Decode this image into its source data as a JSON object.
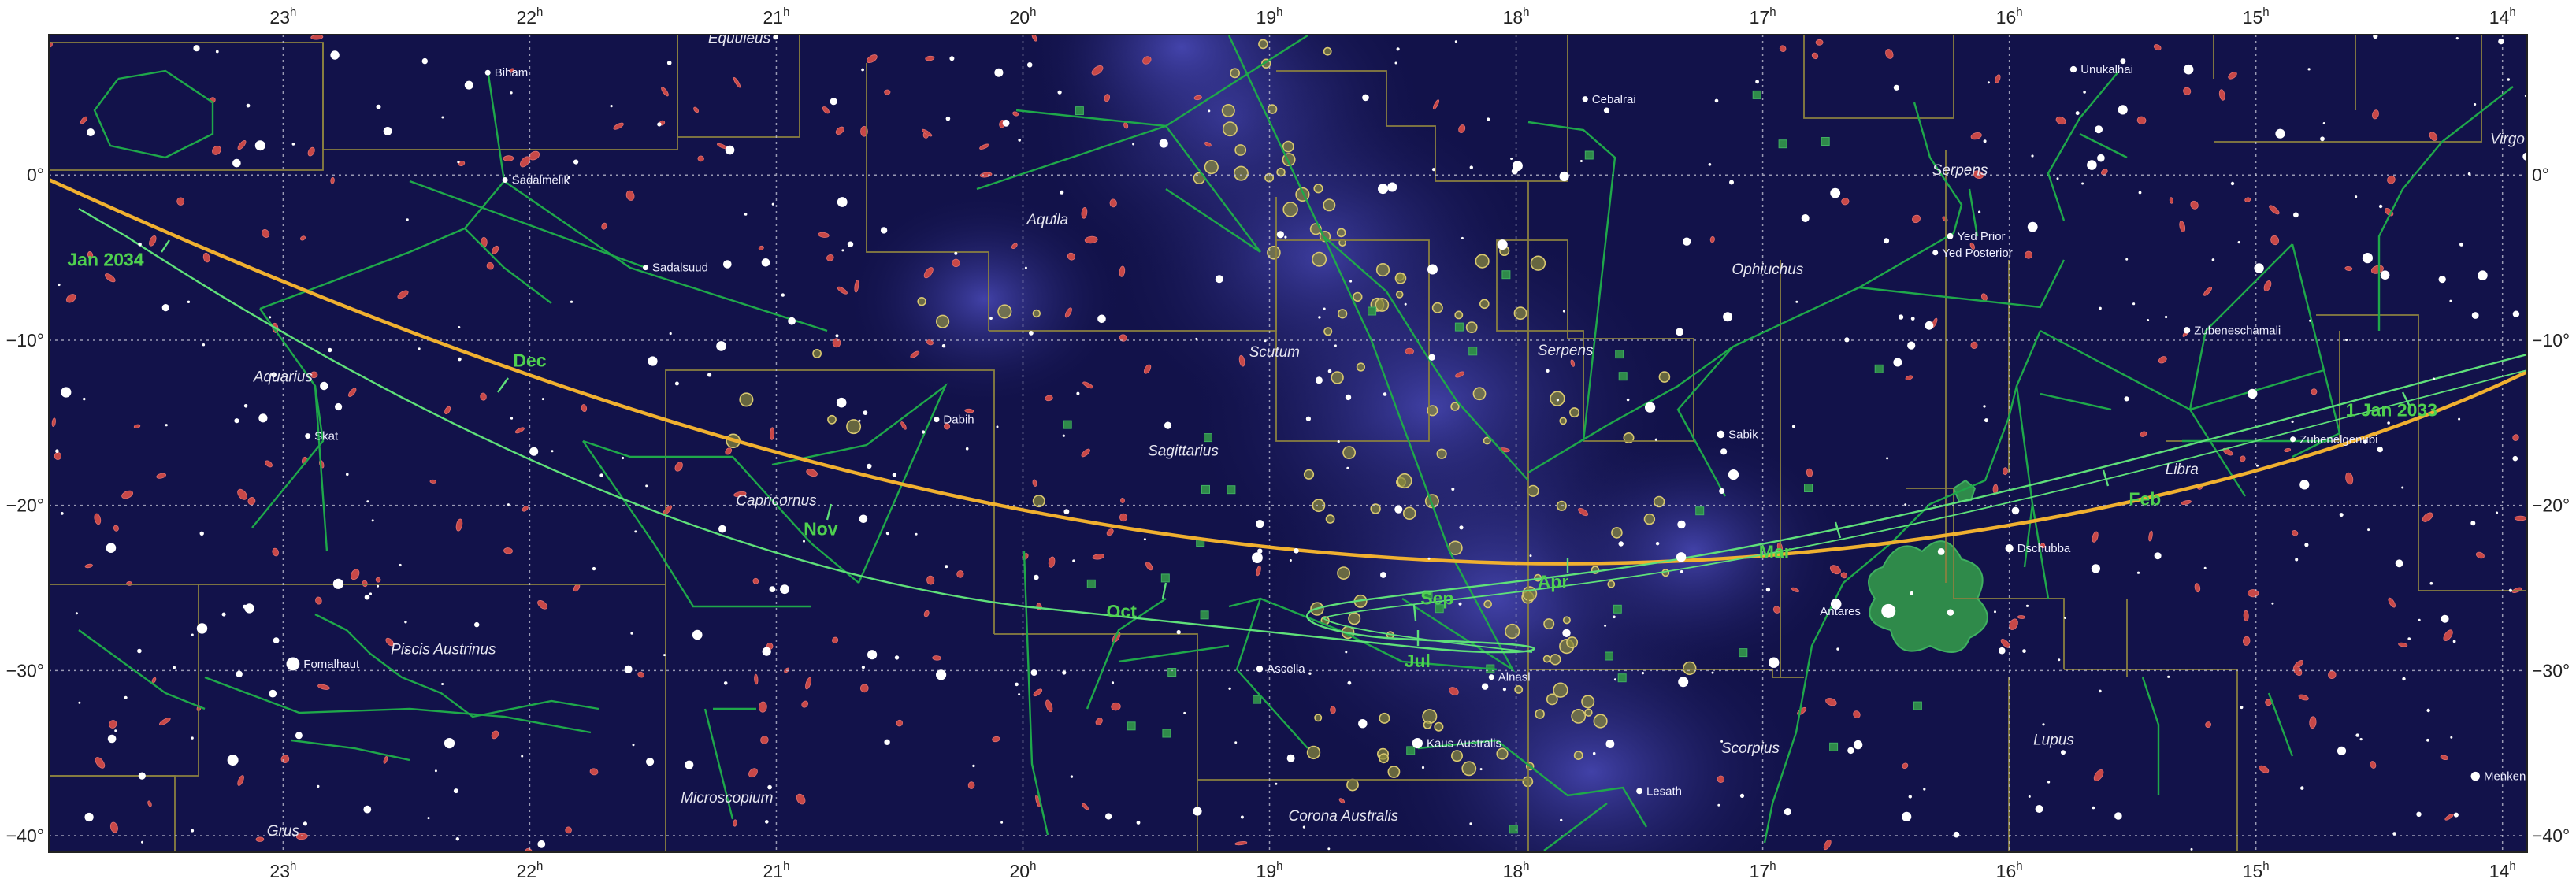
{
  "map": {
    "ra_ticks": [
      {
        "hour": 23,
        "label": "23",
        "sup": "h"
      },
      {
        "hour": 22,
        "label": "22",
        "sup": "h"
      },
      {
        "hour": 21,
        "label": "21",
        "sup": "h"
      },
      {
        "hour": 20,
        "label": "20",
        "sup": "h"
      },
      {
        "hour": 19,
        "label": "19",
        "sup": "h"
      },
      {
        "hour": 18,
        "label": "18",
        "sup": "h"
      },
      {
        "hour": 17,
        "label": "17",
        "sup": "h"
      },
      {
        "hour": 16,
        "label": "16",
        "sup": "h"
      },
      {
        "hour": 15,
        "label": "15",
        "sup": "h"
      },
      {
        "hour": 14,
        "label": "14",
        "sup": "h"
      }
    ],
    "dec_ticks": [
      {
        "deg": 0,
        "label": "0°"
      },
      {
        "deg": -10,
        "label": "−10°"
      },
      {
        "deg": -20,
        "label": "−20°"
      },
      {
        "deg": -30,
        "label": "−30°"
      },
      {
        "deg": -40,
        "label": "−40°"
      }
    ],
    "ra_range_hours": [
      23.95,
      13.9
    ],
    "dec_range_deg": [
      8.5,
      -41
    ],
    "colors": {
      "sky": "#12124a",
      "milky_way": "#3a3aa0",
      "ecliptic": "#f0b030",
      "comet_path": "#5fe07a",
      "constellation_lines": "#1fa84a",
      "boundaries": "#8a8040",
      "grid": "#c8c8d8",
      "galaxy": "#c84848",
      "cluster": "#d8c870",
      "nebula": "#2f8a4a"
    },
    "stars": [
      {
        "name": "Biham",
        "ra": 22.17,
        "dec": 6.2,
        "mag": 3.5
      },
      {
        "name": "Sadalmelik",
        "ra": 22.1,
        "dec": -0.3,
        "mag": 3.0
      },
      {
        "name": "Sadalsuud",
        "ra": 21.53,
        "dec": -5.6,
        "mag": 2.9
      },
      {
        "name": "Skat",
        "ra": 22.9,
        "dec": -15.8,
        "mag": 3.3
      },
      {
        "name": "Dabih",
        "ra": 20.35,
        "dec": -14.8,
        "mag": 3.1
      },
      {
        "name": "Fomalhaut",
        "ra": 22.96,
        "dec": -29.6,
        "mag": 1.2
      },
      {
        "name": "Cebalrai",
        "ra": 17.72,
        "dec": 4.6,
        "mag": 2.8
      },
      {
        "name": "Yed Prior",
        "ra": 16.24,
        "dec": -3.7,
        "mag": 2.7
      },
      {
        "name": "Yed Posterior",
        "ra": 16.3,
        "dec": -4.7,
        "mag": 3.2
      },
      {
        "name": "Unukalhai",
        "ra": 15.74,
        "dec": 6.4,
        "mag": 2.6
      },
      {
        "name": "Sabik",
        "ra": 17.17,
        "dec": -15.7,
        "mag": 2.4
      },
      {
        "name": "Zubeneschamali",
        "ra": 15.28,
        "dec": -9.4,
        "mag": 2.6
      },
      {
        "name": "Zubenelgenubi",
        "ra": 14.85,
        "dec": -16.0,
        "mag": 2.8
      },
      {
        "name": "Dschubba",
        "ra": 16.0,
        "dec": -22.6,
        "mag": 2.3
      },
      {
        "name": "Antares",
        "ra": 16.49,
        "dec": -26.4,
        "mag": 1.0
      },
      {
        "name": "Ascella",
        "ra": 19.04,
        "dec": -29.9,
        "mag": 2.6
      },
      {
        "name": "Alnasl",
        "ra": 18.1,
        "dec": -30.4,
        "mag": 3.0
      },
      {
        "name": "Kaus Australis",
        "ra": 18.4,
        "dec": -34.4,
        "mag": 1.8
      },
      {
        "name": "Lesath",
        "ra": 17.5,
        "dec": -37.3,
        "mag": 2.7
      },
      {
        "name": "Menkent",
        "ra": 14.11,
        "dec": -36.4,
        "mag": 2.1
      }
    ],
    "constellations": [
      {
        "name": "Equuleus",
        "ra": 21.15,
        "dec": 8.0
      },
      {
        "name": "Aquila",
        "ra": 19.9,
        "dec": -3.0
      },
      {
        "name": "Aquarius",
        "ra": 23.0,
        "dec": -12.5
      },
      {
        "name": "Capricornus",
        "ra": 21.0,
        "dec": -20.0
      },
      {
        "name": "Sagittarius",
        "ra": 19.35,
        "dec": -17.0
      },
      {
        "name": "Scutum",
        "ra": 18.98,
        "dec": -11.0
      },
      {
        "name": "Serpens",
        "ra": 17.8,
        "dec": -10.9
      },
      {
        "name": "Serpens",
        "ra": 16.2,
        "dec": 0.0
      },
      {
        "name": "Ophiuchus",
        "ra": 16.98,
        "dec": -6.0
      },
      {
        "name": "Libra",
        "ra": 15.3,
        "dec": -18.1
      },
      {
        "name": "Virgo",
        "ra": 13.98,
        "dec": 1.9
      },
      {
        "name": "Piscis Austrinus",
        "ra": 22.35,
        "dec": -29.0
      },
      {
        "name": "Microscopium",
        "ra": 21.2,
        "dec": -38.0
      },
      {
        "name": "Grus",
        "ra": 23.0,
        "dec": -40.0
      },
      {
        "name": "Corona Australis",
        "ra": 18.7,
        "dec": -39.1
      },
      {
        "name": "Scorpius",
        "ra": 17.05,
        "dec": -35.0
      },
      {
        "name": "Lupus",
        "ra": 15.82,
        "dec": -34.5
      }
    ],
    "comet_dates": [
      {
        "label": "1 Jan 2033",
        "ra": 14.45,
        "dec": -14.6
      },
      {
        "label": "Feb",
        "ra": 15.45,
        "dec": -20.0
      },
      {
        "label": "Mar",
        "ra": 16.95,
        "dec": -23.2
      },
      {
        "label": "Apr",
        "ra": 17.85,
        "dec": -25.0
      },
      {
        "label": "Sep",
        "ra": 18.32,
        "dec": -26.0
      },
      {
        "label": "Jul",
        "ra": 18.4,
        "dec": -29.8
      },
      {
        "label": "Oct",
        "ra": 19.6,
        "dec": -26.8
      },
      {
        "label": "Nov",
        "ra": 20.82,
        "dec": -21.8
      },
      {
        "label": "Dec",
        "ra": 22.0,
        "dec": -11.6
      },
      {
        "label": "Jan 2034",
        "ra": 23.72,
        "dec": -5.5
      }
    ]
  }
}
